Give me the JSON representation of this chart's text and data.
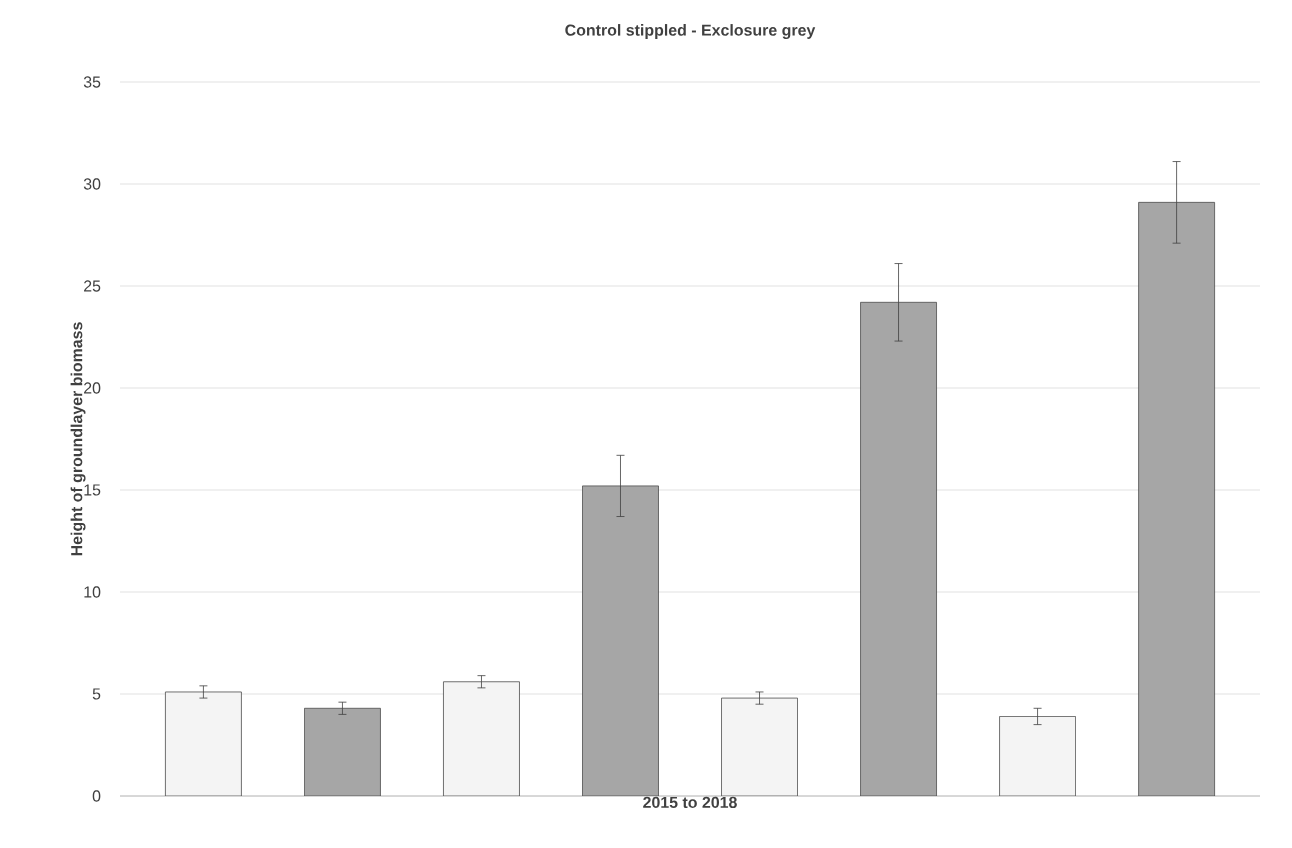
{
  "chart_data": {
    "type": "bar",
    "title": "Control stippled - Exclosure grey",
    "xlabel": "2015 to 2018",
    "ylabel": "Height of groundlayer biomass",
    "categories": [
      null,
      null,
      null,
      null,
      null,
      null,
      null,
      null
    ],
    "values": [
      5.1,
      4.3,
      5.6,
      15.2,
      4.8,
      24.2,
      3.9,
      29.1
    ],
    "errors": [
      0.3,
      0.3,
      0.3,
      1.5,
      0.3,
      1.9,
      0.4,
      2.0
    ],
    "colors": [
      "#f4f4f4",
      "#a6a6a6",
      "#f4f4f4",
      "#a6a6a6",
      "#f4f4f4",
      "#a6a6a6",
      "#f4f4f4",
      "#a6a6a6"
    ],
    "ylim": [
      0,
      35
    ],
    "yticks": [
      0,
      5,
      10,
      15,
      20,
      25,
      30,
      35
    ],
    "grid": "y"
  }
}
